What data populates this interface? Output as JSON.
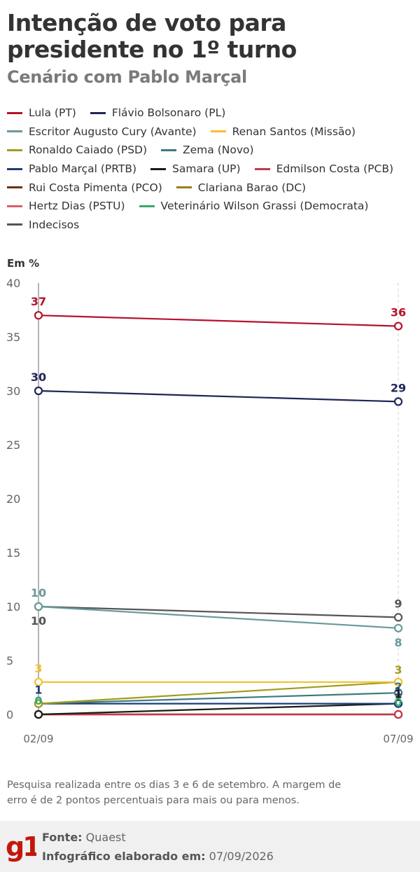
{
  "header": {
    "title": "Intenção de voto para presidente no 1º turno",
    "subtitle": "Cenário com Pablo Marçal"
  },
  "legend_rows": [
    [
      {
        "label": "Lula (PT)",
        "color": "#b5132d"
      },
      {
        "label": "Flávio Bolsonaro (PL)",
        "color": "#1f2557"
      }
    ],
    [
      {
        "label": "Escritor Augusto Cury (Avante)",
        "color": "#6a9a9a"
      },
      {
        "label": "Renan Santos (Missão)",
        "color": "#f2c12e"
      }
    ],
    [
      {
        "label": "Ronaldo Caiado (PSD)",
        "color": "#a39c1a"
      },
      {
        "label": "Zema (Novo)",
        "color": "#3d7a7f"
      }
    ],
    [
      {
        "label": "Pablo Marçal (PRTB)",
        "color": "#1d3c7a"
      },
      {
        "label": "Samara (UP)",
        "color": "#1a1a1a"
      },
      {
        "label": "Edmilson Costa (PCB)",
        "color": "#c8374a"
      }
    ],
    [
      {
        "label": "Rui Costa Pimenta (PCO)",
        "color": "#6b3210"
      },
      {
        "label": "Clariana Barao (DC)",
        "color": "#a07a1c"
      }
    ],
    [
      {
        "label": "Hertz Dias (PSTU)",
        "color": "#d8606f"
      },
      {
        "label": "Veterinário Wilson Grassi (Democrata)",
        "color": "#3aa86a"
      }
    ],
    [
      {
        "label": "Indecisos",
        "color": "#555555"
      }
    ]
  ],
  "y_axis_title": "Em %",
  "chart_data": {
    "type": "line",
    "x": [
      "02/09",
      "07/09"
    ],
    "ylabel": "Em %",
    "ylim": [
      0,
      40
    ],
    "yticks": [
      0,
      5,
      10,
      15,
      20,
      25,
      30,
      35,
      40
    ],
    "grid": false,
    "series": [
      {
        "name": "Lula (PT)",
        "color": "#b5132d",
        "values": [
          37,
          36
        ],
        "labels": [
          "37",
          "36"
        ]
      },
      {
        "name": "Flávio Bolsonaro (PL)",
        "color": "#1f2557",
        "values": [
          30,
          29
        ],
        "labels": [
          "30",
          "29"
        ]
      },
      {
        "name": "Escritor Augusto Cury (Avante)",
        "color": "#6a9a9a",
        "values": [
          10,
          8
        ],
        "labels": [
          "10",
          "8"
        ]
      },
      {
        "name": "Renan Santos (Missão)",
        "color": "#f2c12e",
        "values": [
          3,
          3
        ],
        "labels": [
          "3",
          ""
        ]
      },
      {
        "name": "Ronaldo Caiado (PSD)",
        "color": "#a39c1a",
        "values": [
          1,
          3
        ],
        "labels": [
          "",
          "3"
        ]
      },
      {
        "name": "Zema (Novo)",
        "color": "#3d7a7f",
        "values": [
          1,
          2
        ],
        "labels": [
          "",
          "2"
        ]
      },
      {
        "name": "Pablo Marçal (PRTB)",
        "color": "#1d3c7a",
        "values": [
          1,
          1
        ],
        "labels": [
          "1",
          "1"
        ]
      },
      {
        "name": "Samara (UP)",
        "color": "#1a1a1a",
        "values": [
          0,
          1
        ],
        "labels": [
          "",
          "1"
        ]
      },
      {
        "name": "Edmilson Costa (PCB)",
        "color": "#c8374a",
        "values": [
          0,
          0
        ],
        "labels": [
          "",
          ""
        ]
      },
      {
        "name": "Rui Costa Pimenta (PCO)",
        "color": "#6b3210",
        "values": [
          0,
          0
        ],
        "labels": [
          "",
          ""
        ]
      },
      {
        "name": "Clariana Barao (DC)",
        "color": "#a07a1c",
        "values": [
          0,
          0
        ],
        "labels": [
          "",
          ""
        ]
      },
      {
        "name": "Hertz Dias (PSTU)",
        "color": "#d8606f",
        "values": [
          0,
          0
        ],
        "labels": [
          "",
          ""
        ]
      },
      {
        "name": "Veterinário Wilson Grassi (Democrata)",
        "color": "#3aa86a",
        "values": [
          0,
          0
        ],
        "labels": [
          "0",
          "0"
        ]
      },
      {
        "name": "Indecisos",
        "color": "#555555",
        "values": [
          10,
          9
        ],
        "labels": [
          "10",
          "9"
        ]
      }
    ]
  },
  "note": "Pesquisa realizada entre os dias 3 e 6 de setembro. A margem de erro é de 2 pontos percentuais para mais ou para menos.",
  "footer": {
    "logo_text": "g1",
    "logo_color": "#c4170c",
    "source_label": "Fonte:",
    "source_value": "Quaest",
    "made_label": "Infográfico elaborado em:",
    "made_value": "07/09/2026"
  }
}
